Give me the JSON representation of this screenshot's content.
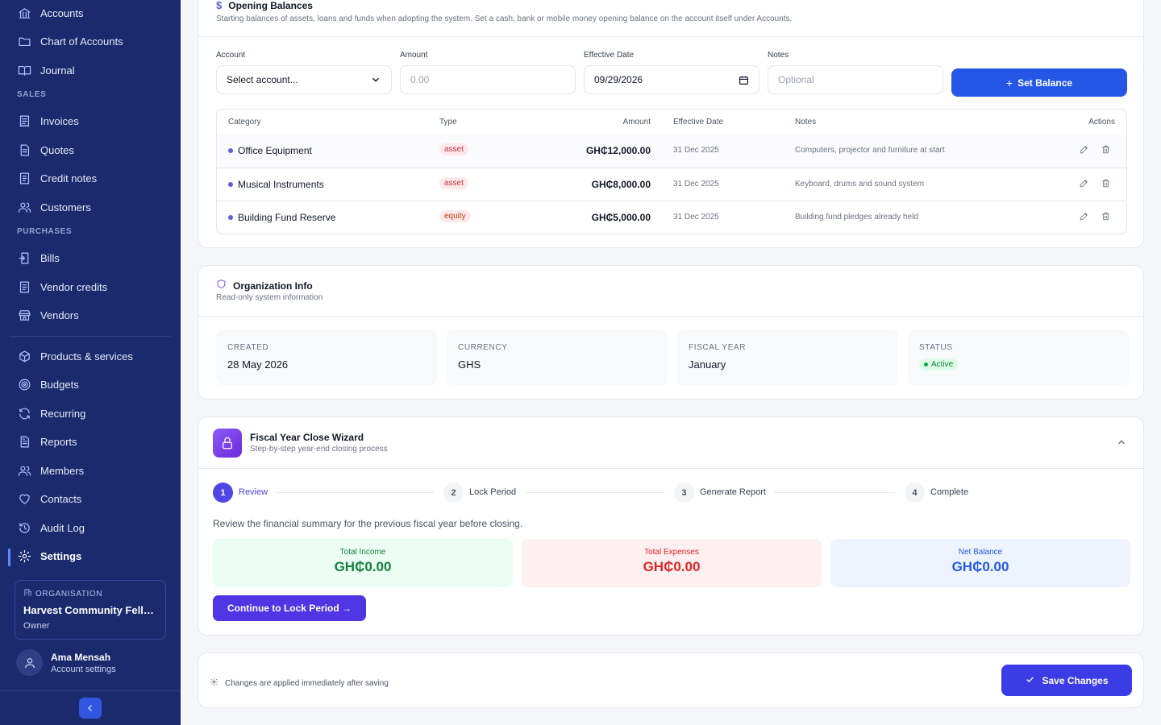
{
  "sidebar": {
    "items": [
      {
        "label": "Accounts",
        "icon": "bank-icon"
      },
      {
        "label": "Chart of Accounts",
        "icon": "folder-icon"
      },
      {
        "label": "Journal",
        "icon": "book-icon"
      },
      {
        "label": "Invoices",
        "icon": "receipt-icon"
      },
      {
        "label": "Quotes",
        "icon": "document-icon"
      },
      {
        "label": "Credit notes",
        "icon": "note-icon"
      },
      {
        "label": "Customers",
        "icon": "users-icon"
      },
      {
        "label": "Bills",
        "icon": "bill-icon"
      },
      {
        "label": "Vendor credits",
        "icon": "note-icon"
      },
      {
        "label": "Vendors",
        "icon": "store-icon"
      },
      {
        "label": "Products & services",
        "icon": "box-icon"
      },
      {
        "label": "Budgets",
        "icon": "target-icon"
      },
      {
        "label": "Recurring",
        "icon": "refresh-icon"
      },
      {
        "label": "Reports",
        "icon": "report-icon"
      },
      {
        "label": "Members",
        "icon": "users-icon"
      },
      {
        "label": "Contacts",
        "icon": "heart-icon"
      },
      {
        "label": "Audit Log",
        "icon": "history-icon"
      },
      {
        "label": "Settings",
        "icon": "gear-icon"
      }
    ],
    "sections": {
      "sales": "SALES",
      "purchases": "PURCHASES"
    },
    "active_color": "#5b8cff",
    "org": {
      "label": "ORGANISATION",
      "name": "Harvest Community Fello...",
      "role": "Owner"
    },
    "user": {
      "name": "Ama Mensah",
      "sub": "Account settings"
    }
  },
  "opening": {
    "title": "Opening Balances",
    "subtitle": "Starting balances of assets, loans and funds when adopting the system. Set a cash, bank or mobile money opening balance on the account itself under Accounts.",
    "form": {
      "account_label": "Account",
      "account_value": "Select account...",
      "amount_label": "Amount",
      "amount_placeholder": "0.00",
      "date_label": "Effective Date",
      "date_value": "09/29/2026",
      "notes_label": "Notes",
      "notes_placeholder": "Optional",
      "submit_label": "Set Balance"
    },
    "headers": {
      "category": "Category",
      "type": "Type",
      "amount": "Amount",
      "date": "Effective Date",
      "notes": "Notes",
      "actions": "Actions"
    },
    "rows": [
      {
        "category": "Office Equipment",
        "type": "asset",
        "amount": "GH₵12,000.00",
        "date": "31 Dec 2025",
        "notes": "Computers, projector and furniture at start"
      },
      {
        "category": "Musical Instruments",
        "type": "asset",
        "amount": "GH₵8,000.00",
        "date": "31 Dec 2025",
        "notes": "Keyboard, drums and sound system"
      },
      {
        "category": "Building Fund Reserve",
        "type": "equity",
        "amount": "GH₵5,000.00",
        "date": "31 Dec 2025",
        "notes": "Building fund pledges already held"
      }
    ]
  },
  "org_info": {
    "title": "Organization Info",
    "subtitle": "Read-only system information",
    "created_label": "CREATED",
    "created_value": "28 May 2026",
    "currency_label": "CURRENCY",
    "currency_value": "GHS",
    "fiscal_label": "FISCAL YEAR",
    "fiscal_value": "January",
    "status_label": "STATUS",
    "status_value": "Active"
  },
  "wizard": {
    "title": "Fiscal Year Close Wizard",
    "subtitle": "Step-by-step year-end closing process",
    "steps": [
      {
        "num": "1",
        "label": "Review"
      },
      {
        "num": "2",
        "label": "Lock Period"
      },
      {
        "num": "3",
        "label": "Generate Report"
      },
      {
        "num": "4",
        "label": "Complete"
      }
    ],
    "intro": "Review the financial summary for the previous fiscal year before closing.",
    "income_label": "Total Income",
    "income_value": "GH₵0.00",
    "expenses_label": "Total Expenses",
    "expenses_value": "GH₵0.00",
    "net_label": "Net Balance",
    "net_value": "GH₵0.00",
    "continue_label": "Continue to Lock Period →"
  },
  "footer": {
    "note": "Changes are applied immediately after saving",
    "save_label": "Save Changes"
  },
  "colors": {
    "sidebar_bg": "#1a2a6c",
    "primary": "#2457e6",
    "violet": "#4f35e3",
    "income": "#15803d",
    "expenses": "#dc2626",
    "net": "#2457e6"
  }
}
